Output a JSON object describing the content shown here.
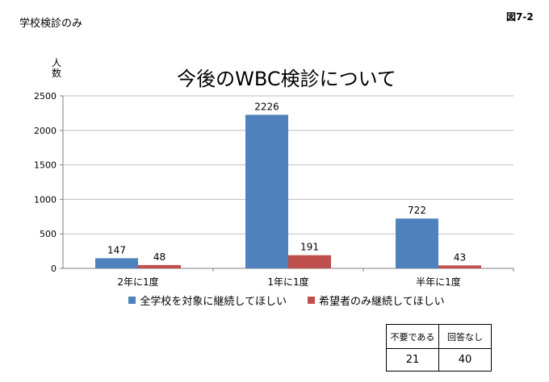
{
  "page": {
    "header_label": "学校検診のみ",
    "figure_number": "図7-2",
    "y_unit": "人数"
  },
  "chart_data": {
    "type": "bar",
    "title": "今後のWBC検診について",
    "categories": [
      "2年に1度",
      "1年に1度",
      "半年に1度"
    ],
    "series": [
      {
        "name": "全学校を対象に継続してほしい",
        "values": [
          147,
          2226,
          722
        ],
        "color": "#4f81bd"
      },
      {
        "name": "希望者のみ継続してほしい",
        "values": [
          48,
          191,
          43
        ],
        "color": "#c0504d"
      }
    ],
    "ylim": [
      0,
      2500
    ],
    "yticks": [
      0,
      500,
      1000,
      1500,
      2000,
      2500
    ],
    "grid": true,
    "legend": "bottom"
  },
  "extra_table": {
    "headers": [
      "不要である",
      "回答なし"
    ],
    "values": [
      "21",
      "40"
    ]
  }
}
